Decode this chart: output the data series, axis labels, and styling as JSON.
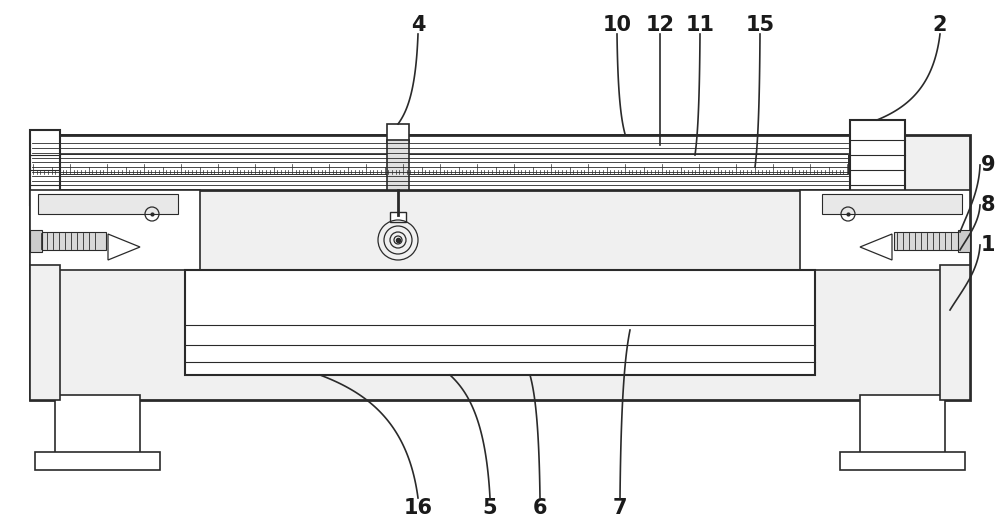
{
  "bg_color": "#ffffff",
  "line_color": "#2a2a2a",
  "fig_width": 10.0,
  "fig_height": 5.3,
  "dpi": 100
}
